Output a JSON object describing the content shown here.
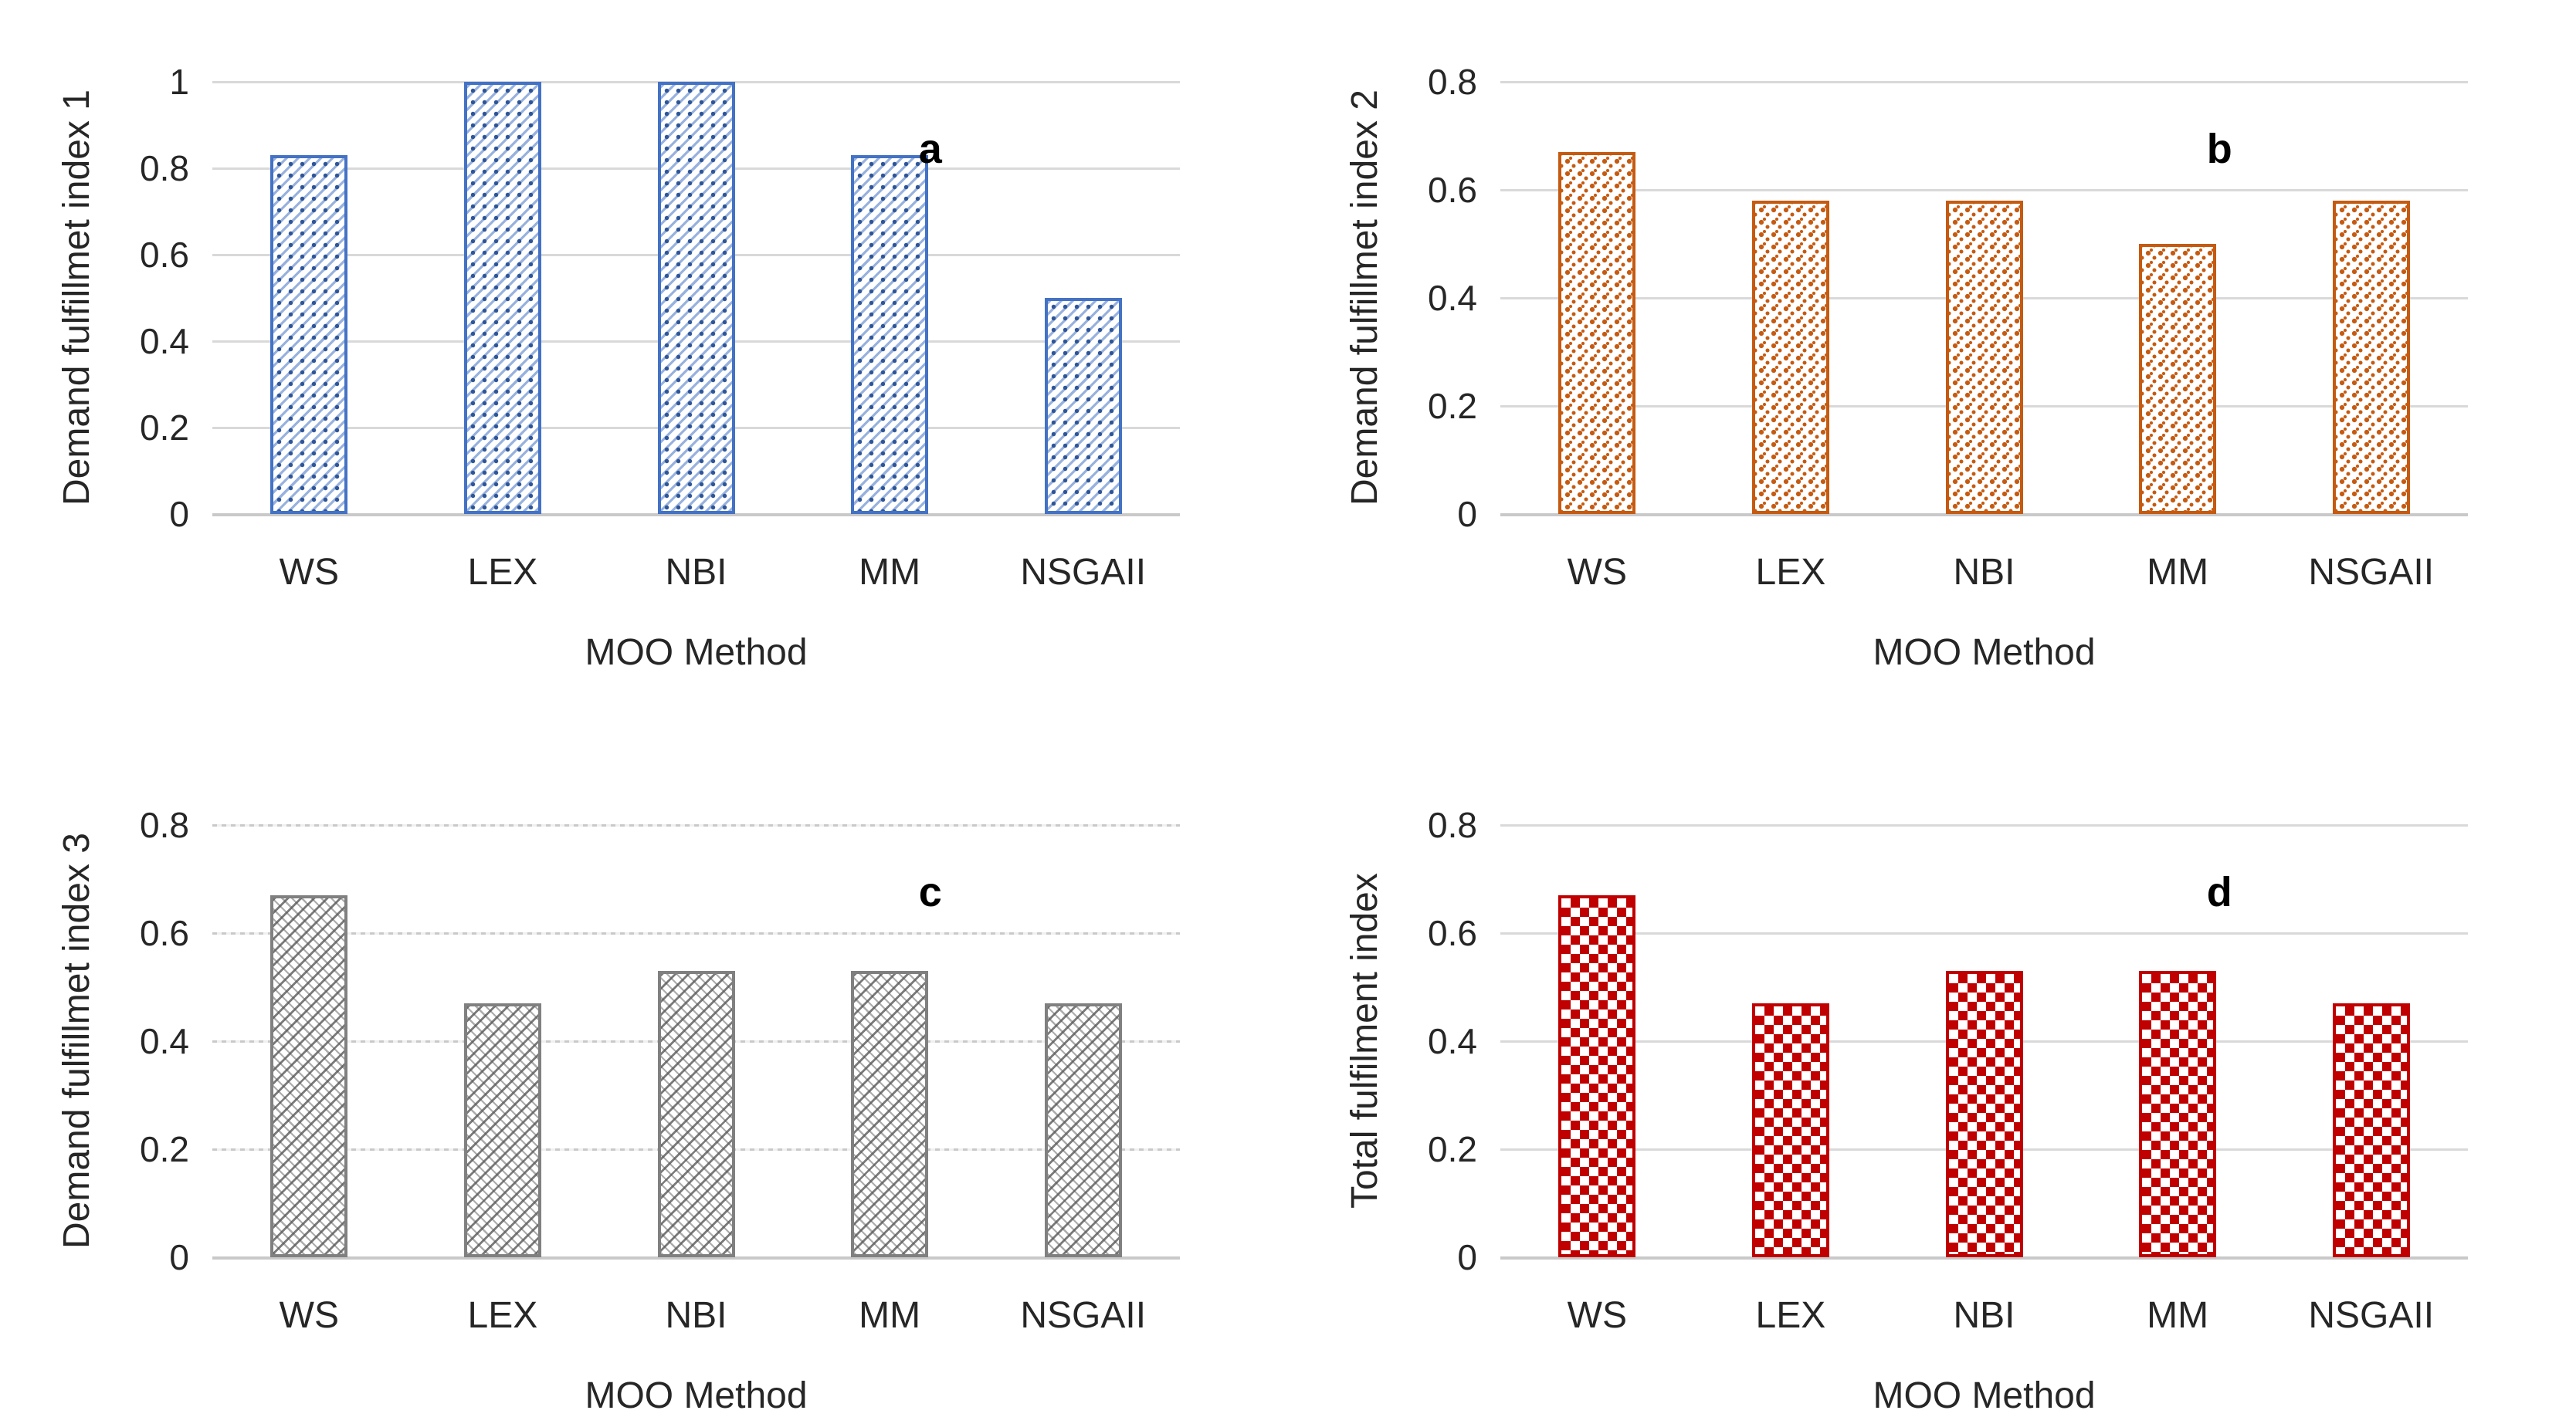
{
  "figure": {
    "x_categories": [
      "WS",
      "LEX",
      "NBI",
      "MM",
      "NSGAII"
    ],
    "x_axis_title": "MOO Method"
  },
  "chart_data": [
    {
      "type": "bar",
      "panel_label": "a",
      "ylabel": "Demand fulfillmet index 1",
      "xlabel": "MOO Method",
      "categories": [
        "WS",
        "LEX",
        "NBI",
        "MM",
        "NSGAII"
      ],
      "values": [
        0.83,
        1.0,
        1.0,
        0.83,
        0.5
      ],
      "ylim": [
        0,
        1
      ],
      "yticks": [
        {
          "label": "1",
          "v": 1.0
        },
        {
          "label": "0.8",
          "v": 0.8
        },
        {
          "label": "0.6",
          "v": 0.6
        },
        {
          "label": "0.4",
          "v": 0.4
        },
        {
          "label": "0.2",
          "v": 0.2
        },
        {
          "label": "0",
          "v": 0
        }
      ],
      "border_color": "#4472C4",
      "pattern": "blue-diagonal",
      "grid_style": "solid",
      "legend": "none"
    },
    {
      "type": "bar",
      "panel_label": "b",
      "ylabel": "Demand fulfillmet index 2",
      "xlabel": "MOO Method",
      "categories": [
        "WS",
        "LEX",
        "NBI",
        "MM",
        "NSGAII"
      ],
      "values": [
        0.67,
        0.58,
        0.58,
        0.5,
        0.58
      ],
      "ylim": [
        0,
        0.8
      ],
      "yticks": [
        {
          "label": "0.8",
          "v": 0.8
        },
        {
          "label": "0.6",
          "v": 0.6
        },
        {
          "label": "0.4",
          "v": 0.4
        },
        {
          "label": "0.2",
          "v": 0.2
        },
        {
          "label": "0",
          "v": 0
        }
      ],
      "border_color": "#C55A11",
      "pattern": "orange-dots",
      "grid_style": "solid",
      "legend": "none"
    },
    {
      "type": "bar",
      "panel_label": "c",
      "ylabel": "Demand fulfillmet index 3",
      "xlabel": "MOO Method",
      "categories": [
        "WS",
        "LEX",
        "NBI",
        "MM",
        "NSGAII"
      ],
      "values": [
        0.67,
        0.47,
        0.53,
        0.53,
        0.47
      ],
      "ylim": [
        0,
        0.8
      ],
      "yticks": [
        {
          "label": "0.8",
          "v": 0.8
        },
        {
          "label": "0.6",
          "v": 0.6
        },
        {
          "label": "0.4",
          "v": 0.4
        },
        {
          "label": "0.2",
          "v": 0.2
        },
        {
          "label": "0",
          "v": 0
        }
      ],
      "border_color": "#808080",
      "pattern": "gray-weave",
      "grid_style": "dotted",
      "legend": "none"
    },
    {
      "type": "bar",
      "panel_label": "d",
      "ylabel": "Total fulfilment index",
      "xlabel": "MOO Method",
      "categories": [
        "WS",
        "LEX",
        "NBI",
        "MM",
        "NSGAII"
      ],
      "values": [
        0.67,
        0.47,
        0.53,
        0.53,
        0.47
      ],
      "ylim": [
        0,
        0.8
      ],
      "yticks": [
        {
          "label": "0.8",
          "v": 0.8
        },
        {
          "label": "0.6",
          "v": 0.6
        },
        {
          "label": "0.4",
          "v": 0.4
        },
        {
          "label": "0.2",
          "v": 0.2
        },
        {
          "label": "0",
          "v": 0
        }
      ],
      "border_color": "#C00000",
      "pattern": "red-checker",
      "grid_style": "solid",
      "legend": "none"
    }
  ]
}
